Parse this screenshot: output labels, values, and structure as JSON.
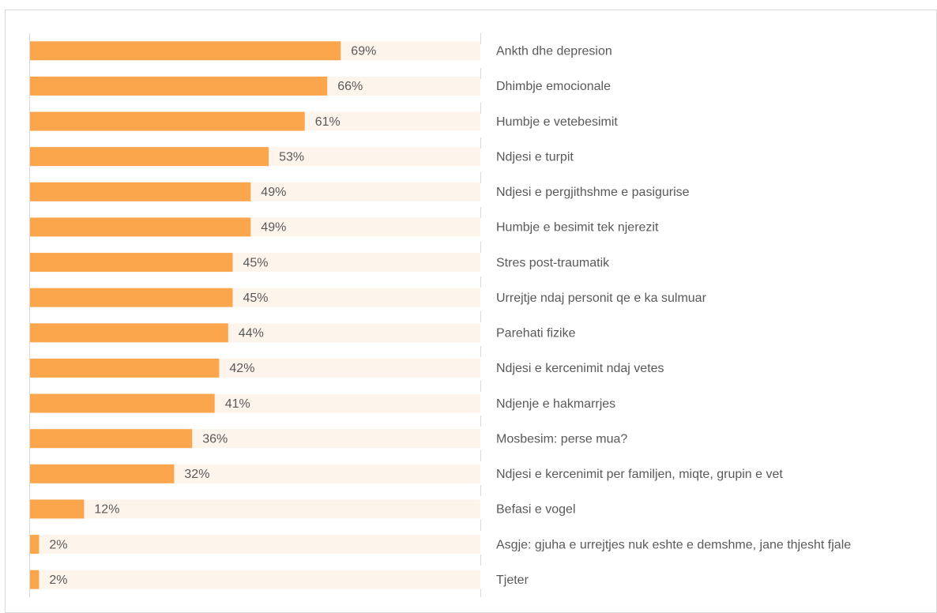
{
  "chart_data": {
    "type": "bar",
    "orientation": "horizontal",
    "categories": [
      "Ankth dhe depresion",
      "Dhimbje emocionale",
      "Humbje e vetebesimit",
      "Ndjesi e turpit",
      "Ndjesi e pergjithshme e pasigurise",
      "Humbje e besimit tek njerezit",
      "Stres post-traumatik",
      "Urrejtje ndaj personit qe e ka sulmuar",
      "Parehati fizike",
      "Ndjesi e kercenimit ndaj vetes",
      "Ndjenje e hakmarrjes",
      "Mosbesim: perse mua?",
      "Ndjesi e kercenimit per familjen, miqte, grupin e vet",
      "Befasi e vogel",
      "Asgje: gjuha e urrejtjes nuk eshte e demshme, jane thjesht fjale",
      "Tjeter"
    ],
    "values": [
      69,
      66,
      61,
      53,
      49,
      49,
      45,
      45,
      44,
      42,
      41,
      36,
      32,
      12,
      2,
      2
    ],
    "value_labels": [
      "69%",
      "66%",
      "61%",
      "53%",
      "49%",
      "49%",
      "45%",
      "45%",
      "44%",
      "42%",
      "41%",
      "36%",
      "32%",
      "12%",
      "2%",
      "2%"
    ],
    "color": "#fba54c",
    "track_color": "#fdf4ec",
    "xlim": [
      0,
      100
    ]
  }
}
